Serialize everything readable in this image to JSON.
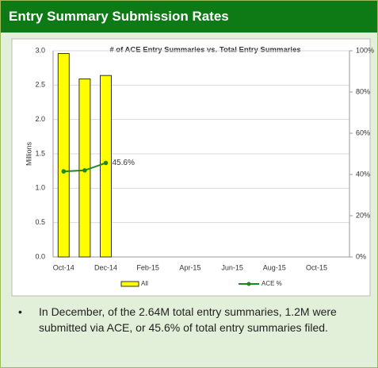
{
  "header": {
    "title": "Entry Summary Submission Rates"
  },
  "chart_data": {
    "type": "bar",
    "title": "# of ACE Entry Summaries vs. Total  Entry Summaries",
    "ylabel": "Millions",
    "categories": [
      "Oct-14",
      null,
      "Dec-14",
      null,
      "Feb-15",
      null,
      "Apr-15",
      null,
      "Jun-15",
      null,
      "Aug-15",
      null,
      "Oct-15"
    ],
    "series": [
      {
        "name": "All",
        "color": "#ffff00",
        "values": [
          2.96,
          2.59,
          2.64,
          null,
          null,
          null,
          null,
          null,
          null,
          null,
          null,
          null,
          null
        ]
      },
      {
        "name": "ACE %",
        "color": "#1e8a1e",
        "axis": "y2",
        "type": "line",
        "values": [
          41.5,
          42,
          45.6,
          null,
          null,
          null,
          null,
          null,
          null,
          null,
          null,
          null,
          null
        ],
        "value_labels": [
          null,
          null,
          "45.6%",
          null,
          null,
          null,
          null,
          null,
          null,
          null,
          null,
          null,
          null
        ]
      }
    ],
    "ylim": [
      0,
      3
    ],
    "yticks": [
      {
        "value": 0,
        "label": "0.0"
      },
      0.5,
      {
        "value": 1,
        "label": "1.0"
      },
      1.5,
      {
        "value": 2,
        "label": "2.0"
      },
      2.5,
      {
        "value": 3,
        "label": "3.0"
      }
    ],
    "y2lim": [
      0,
      100
    ],
    "y2ticks": [
      {
        "value": 0,
        "label": "0%"
      },
      {
        "value": 20,
        "label": "20%"
      },
      {
        "value": 40,
        "label": "40%"
      },
      {
        "value": 60,
        "label": "60%"
      },
      {
        "value": 80,
        "label": "80%"
      },
      {
        "value": 100,
        "label": "100%"
      }
    ],
    "grid": true,
    "legend": "bottom"
  },
  "note": "In December, of the 2.64M total entry summaries, 1.2M were submitted via ACE, or 45.6% of total entry summaries filed."
}
